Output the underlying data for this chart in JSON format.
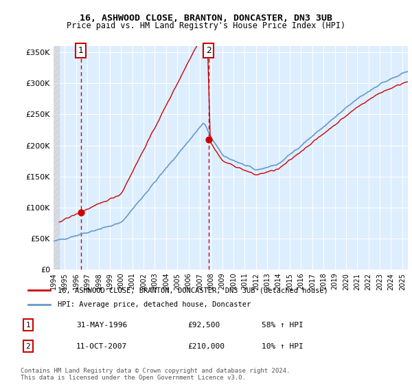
{
  "title_line1": "16, ASHWOOD CLOSE, BRANTON, DONCASTER, DN3 3UB",
  "title_line2": "Price paid vs. HM Land Registry's House Price Index (HPI)",
  "legend_label1": "16, ASHWOOD CLOSE, BRANTON, DONCASTER, DN3 3UB (detached house)",
  "legend_label2": "HPI: Average price, detached house, Doncaster",
  "annotation1_label": "1",
  "annotation1_date": "31-MAY-1996",
  "annotation1_price": "£92,500",
  "annotation1_hpi": "58% ↑ HPI",
  "annotation2_label": "2",
  "annotation2_date": "11-OCT-2007",
  "annotation2_price": "£210,000",
  "annotation2_hpi": "10% ↑ HPI",
  "footer": "Contains HM Land Registry data © Crown copyright and database right 2024.\nThis data is licensed under the Open Government Licence v3.0.",
  "sale1_year": 1996.42,
  "sale1_price": 92500,
  "sale2_year": 2007.78,
  "sale2_price": 210000,
  "price_line_color": "#cc0000",
  "hpi_line_color": "#6699cc",
  "sale_dot_color": "#cc0000",
  "vline_color": "#cc0000",
  "background_hatched_color": "#e8e8e8",
  "background_chart_color": "#ddeeff",
  "ylim": [
    0,
    360000
  ],
  "xlim_start": 1994,
  "xlim_end": 2025.5,
  "yticks": [
    0,
    50000,
    100000,
    150000,
    200000,
    250000,
    300000,
    350000
  ],
  "ytick_labels": [
    "£0",
    "£50K",
    "£100K",
    "£150K",
    "£200K",
    "£250K",
    "£300K",
    "£350K"
  ],
  "xticks": [
    1994,
    1995,
    1996,
    1997,
    1998,
    1999,
    2000,
    2001,
    2002,
    2003,
    2004,
    2005,
    2006,
    2007,
    2008,
    2009,
    2010,
    2011,
    2012,
    2013,
    2014,
    2015,
    2016,
    2017,
    2018,
    2019,
    2020,
    2021,
    2022,
    2023,
    2024,
    2025
  ]
}
